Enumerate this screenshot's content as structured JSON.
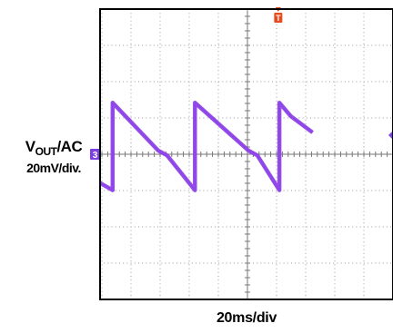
{
  "chart_data": {
    "type": "line",
    "title": "",
    "ylabel": {
      "main": "V",
      "subscript": "OUT",
      "suffix": "/AC",
      "scale": "20mV/div."
    },
    "xlabel": "20ms/div",
    "grid": true,
    "divisions": {
      "x": 10,
      "y": 8
    },
    "xlim": [
      0,
      10
    ],
    "ylim": [
      -4,
      4
    ],
    "channel_marker": "3",
    "trigger_marker": "T",
    "series": [
      {
        "color": "#8e44e8",
        "points": [
          [
            -0.2,
            -0.7
          ],
          [
            0.43,
            -0.99
          ],
          [
            0.43,
            1.42
          ],
          [
            2.0,
            0.1
          ],
          [
            2.3,
            -0.03
          ],
          [
            3.26,
            -0.99
          ],
          [
            3.26,
            1.42
          ],
          [
            5.1,
            0.1
          ],
          [
            5.4,
            -0.03
          ],
          [
            6.16,
            -0.99
          ],
          [
            6.16,
            1.42
          ],
          [
            6.55,
            1.05
          ],
          [
            7.3,
            0.6
          ]
        ]
      }
    ],
    "trigger_position_div": 6.12
  }
}
